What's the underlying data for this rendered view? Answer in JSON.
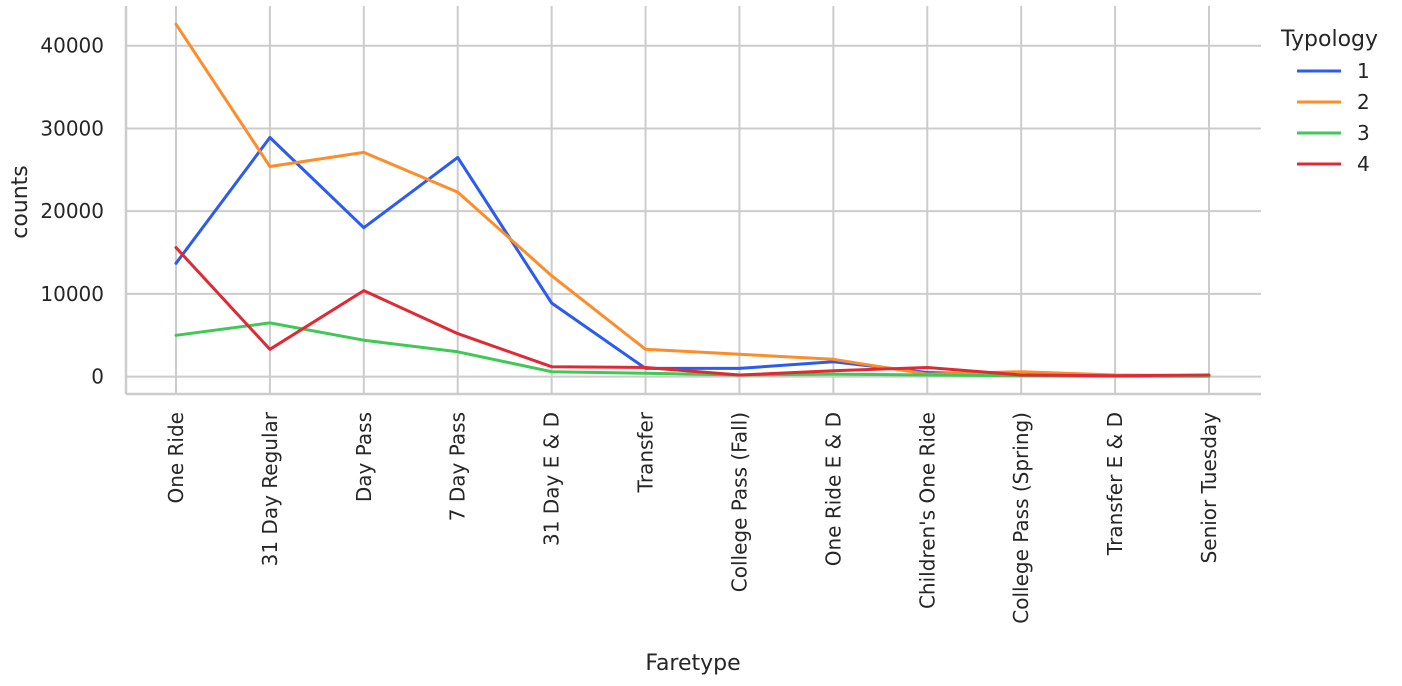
{
  "chart_data": {
    "type": "line",
    "title": "",
    "xlabel": "Faretype",
    "ylabel": "counts",
    "categories": [
      "One Ride",
      "31 Day Regular",
      "Day Pass",
      "7 Day Pass",
      "31 Day E & D",
      "Transfer",
      "College Pass (Fall)",
      "One Ride E & D",
      "Children's One Ride",
      "College Pass (Spring)",
      "Transfer E & D",
      "Senior Tuesday"
    ],
    "ylim": [
      -2100,
      44800
    ],
    "yticks": [
      0,
      10000,
      20000,
      30000,
      40000
    ],
    "ytick_labels": [
      "0",
      "10000",
      "20000",
      "30000",
      "40000"
    ],
    "grid": true,
    "legend_title": "Typology",
    "legend_position": "top-right outside",
    "series": [
      {
        "name": "1",
        "color": "#2b5bef",
        "values": [
          13700,
          28900,
          18000,
          26500,
          8900,
          1000,
          1000,
          1800,
          500,
          200,
          100,
          100
        ]
      },
      {
        "name": "2",
        "color": "#fd8c2a",
        "values": [
          42600,
          25400,
          27100,
          22300,
          12200,
          3300,
          2700,
          2100,
          300,
          600,
          200,
          100
        ]
      },
      {
        "name": "3",
        "color": "#3fc954",
        "values": [
          5000,
          6500,
          4400,
          3000,
          600,
          400,
          200,
          300,
          200,
          100,
          50,
          50
        ]
      },
      {
        "name": "4",
        "color": "#df2935",
        "values": [
          15600,
          3300,
          10400,
          5200,
          1200,
          1100,
          200,
          700,
          1100,
          200,
          100,
          200
        ]
      }
    ]
  }
}
